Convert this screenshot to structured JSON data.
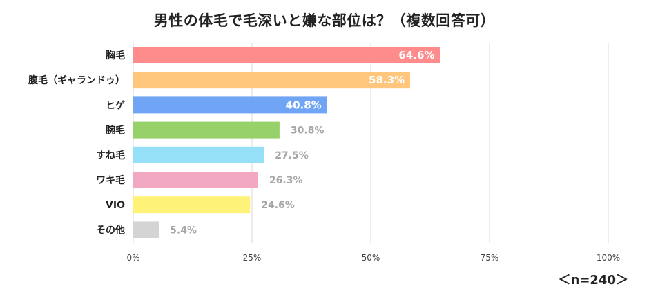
{
  "chart_data": {
    "type": "bar",
    "orientation": "horizontal",
    "title": "男性の体毛で毛深いと嫌な部位は？（複数回答可）",
    "categories": [
      "胸毛",
      "腹毛（ギャランドゥ）",
      "ヒゲ",
      "腕毛",
      "すね毛",
      "ワキ毛",
      "VIO",
      "その他"
    ],
    "values": [
      64.6,
      58.3,
      40.8,
      30.8,
      27.5,
      26.3,
      24.6,
      5.4
    ],
    "value_labels": [
      "64.6%",
      "58.3%",
      "40.8%",
      "30.8%",
      "27.5%",
      "26.3%",
      "24.6%",
      "5.4%"
    ],
    "colors": [
      "#ff8c8c",
      "#ffc77d",
      "#70a5f5",
      "#96d16a",
      "#96e0f7",
      "#f2a7c2",
      "#fff278",
      "#d4d4d4"
    ],
    "label_inside": [
      true,
      true,
      true,
      false,
      false,
      false,
      false,
      false
    ],
    "xlim": [
      0,
      100
    ],
    "x_ticks": [
      0,
      25,
      50,
      75,
      100
    ],
    "x_tick_labels": [
      "0%",
      "25%",
      "50%",
      "75%",
      "100%"
    ],
    "grid": true,
    "note": "＜n=240＞"
  }
}
